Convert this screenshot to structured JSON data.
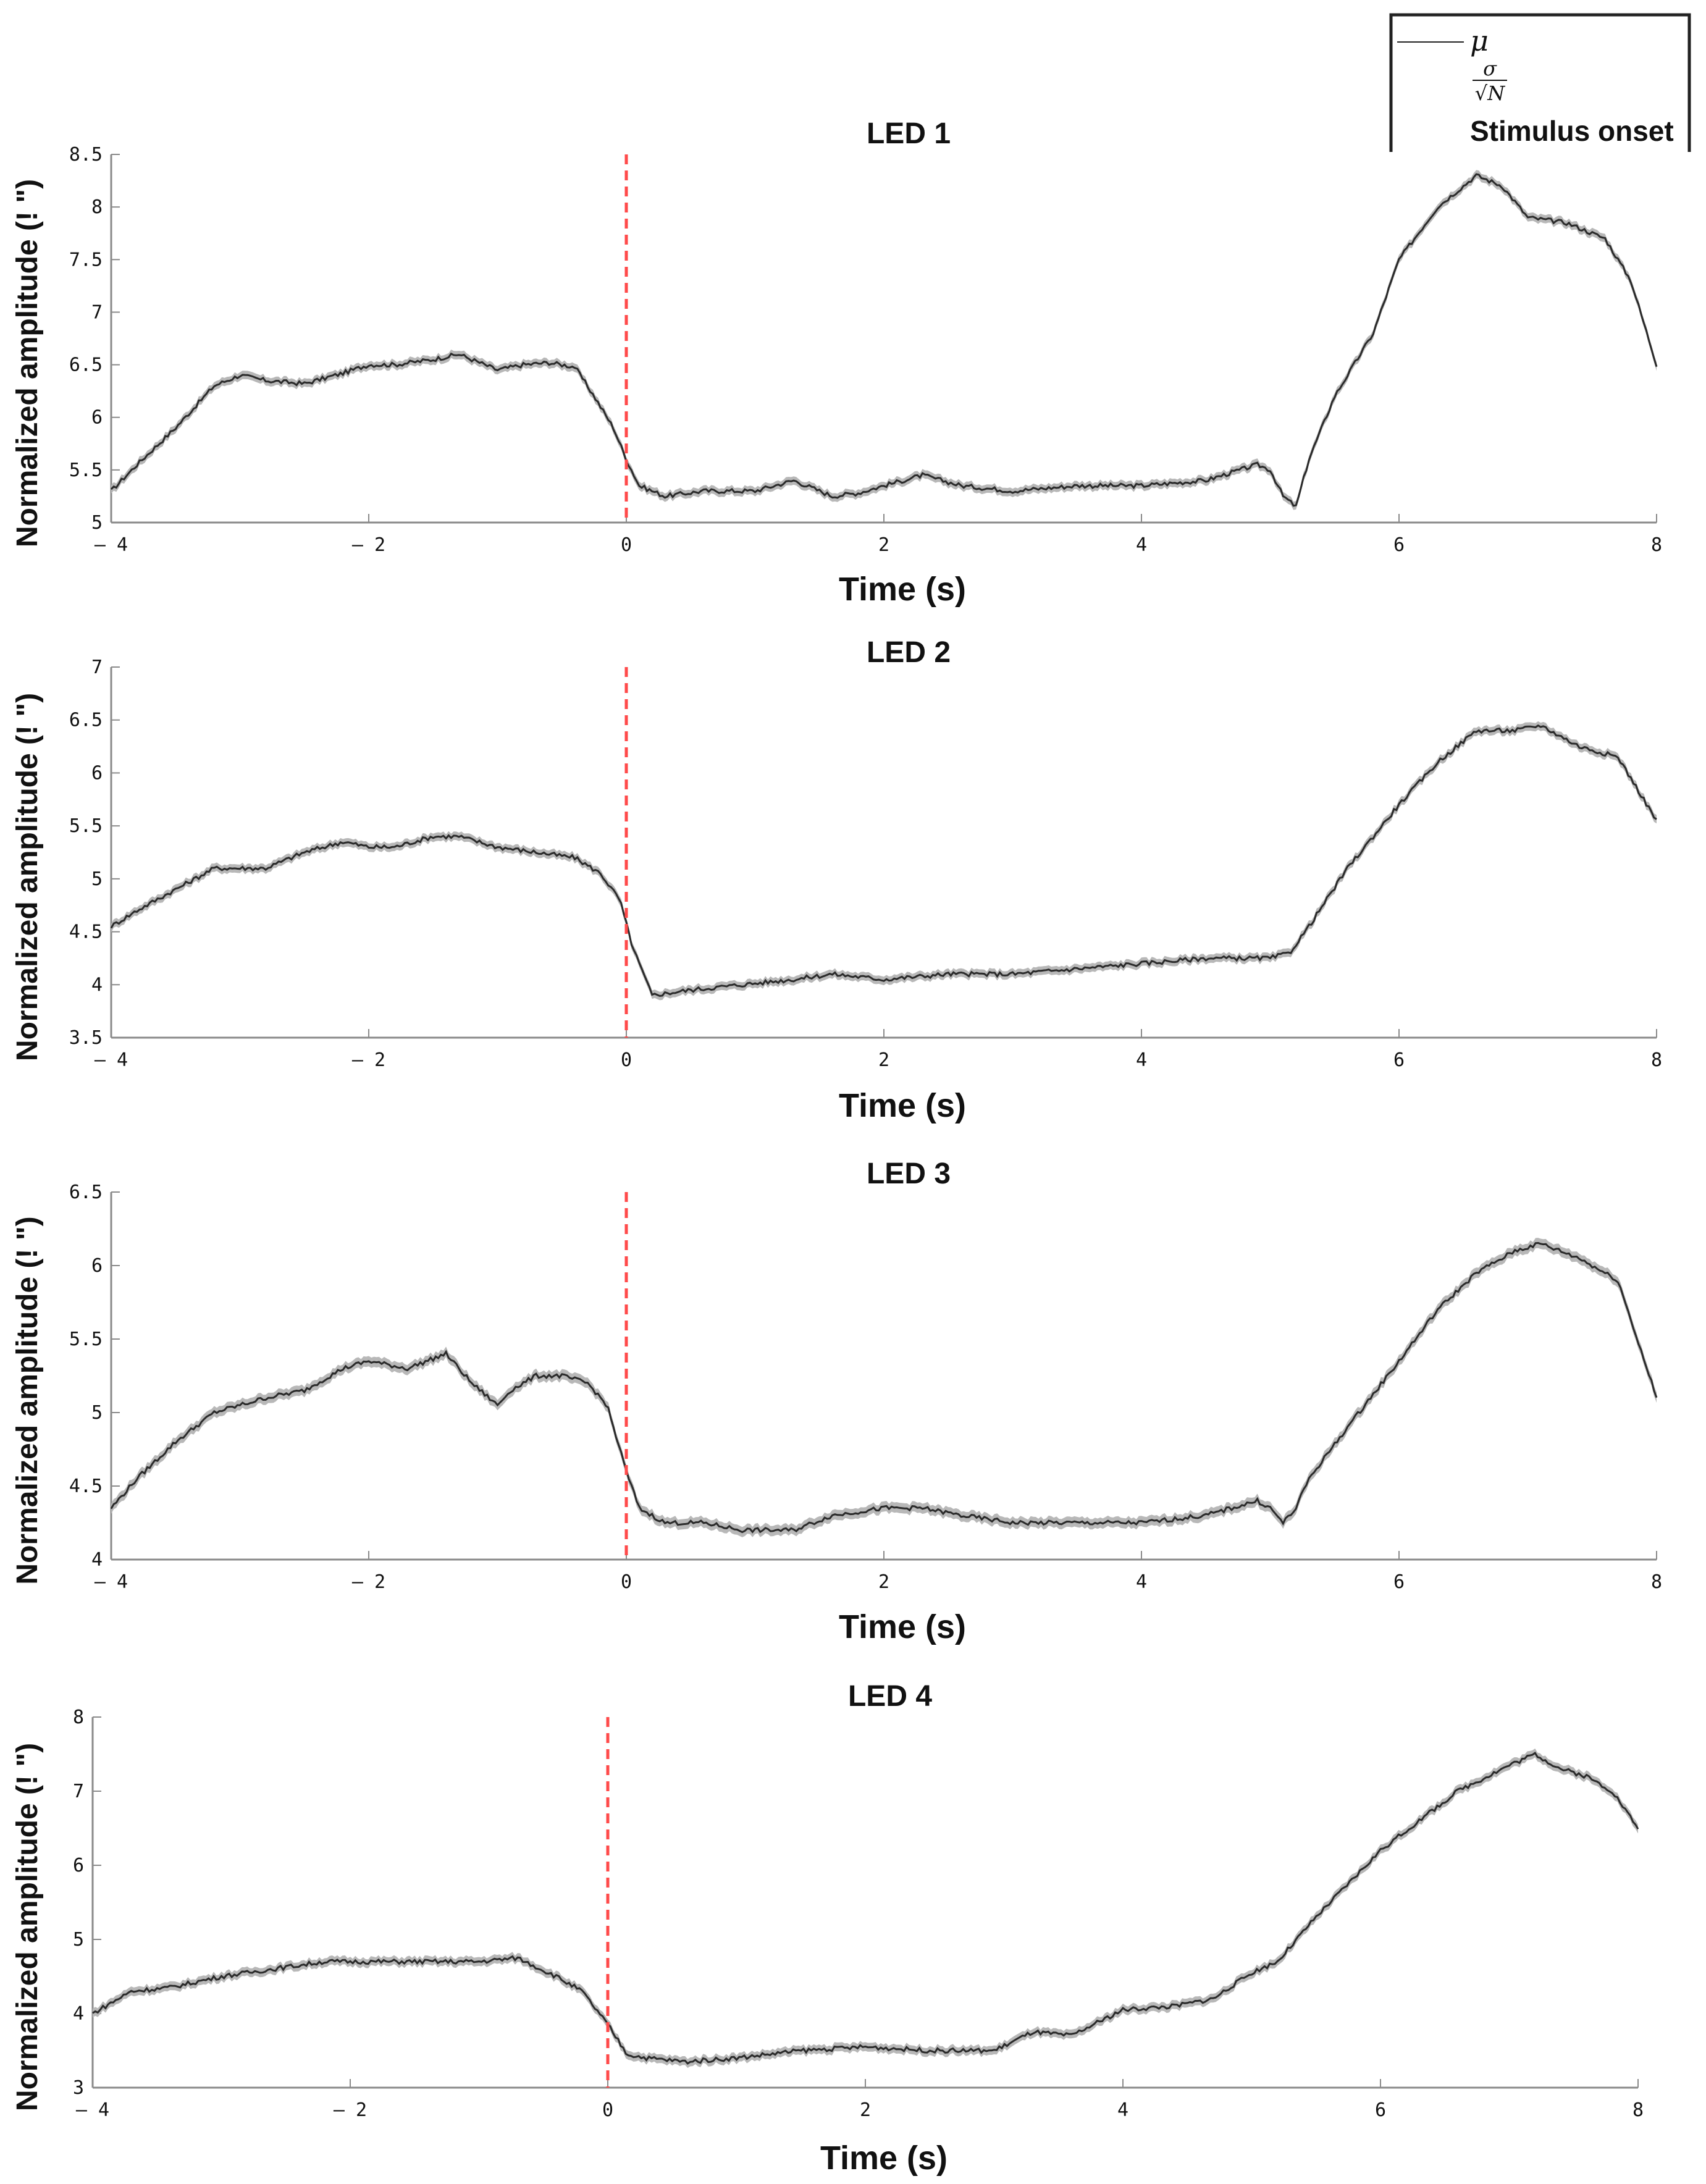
{
  "legend": {
    "mean_label": "μ",
    "sem_numerator": "σ",
    "sem_denominator": "√N",
    "onset_label": "Stimulus onset"
  },
  "colors": {
    "mean_line": "#2a2a2a",
    "sem_band": "#b8b8b8",
    "onset_line": "#ff4a4a",
    "axis": "#8a8a8a"
  },
  "chart_data": [
    {
      "type": "line",
      "title": "LED 1",
      "xlabel": "Time (s)",
      "ylabel": "Normalized amplitude (!  \")",
      "xlim": [
        -4,
        8
      ],
      "ylim": [
        5,
        8.5
      ],
      "xticks": [
        -4,
        -2,
        0,
        2,
        4,
        6,
        8
      ],
      "xtick_labels": [
        "– 4",
        "– 2",
        "0",
        "2",
        "4",
        "6",
        "8"
      ],
      "yticks": [
        5,
        5.5,
        6,
        6.5,
        7,
        7.5,
        8,
        8.5
      ],
      "ytick_labels": [
        "5",
        "5.5",
        "6",
        "6.5",
        "7",
        "7.5",
        "8",
        "8.5"
      ],
      "onset_x": 0,
      "sem": 0.04,
      "series": [
        {
          "name": "μ",
          "x": [
            -4,
            -3.8,
            -3.5,
            -3.2,
            -3.0,
            -2.8,
            -2.5,
            -2.2,
            -2.0,
            -1.8,
            -1.5,
            -1.3,
            -1.0,
            -0.8,
            -0.6,
            -0.4,
            -0.25,
            -0.1,
            0.0,
            0.1,
            0.3,
            0.6,
            1.0,
            1.3,
            1.6,
            1.8,
            2.0,
            2.3,
            2.6,
            3.0,
            3.5,
            4.0,
            4.5,
            4.9,
            5.0,
            5.1,
            5.2,
            5.3,
            5.5,
            5.8,
            6.0,
            6.3,
            6.6,
            6.8,
            7.0,
            7.3,
            7.6,
            7.8,
            8.0
          ],
          "values": [
            5.3,
            5.55,
            5.9,
            6.3,
            6.4,
            6.35,
            6.32,
            6.42,
            6.5,
            6.5,
            6.55,
            6.6,
            6.45,
            6.5,
            6.52,
            6.48,
            6.2,
            5.9,
            5.6,
            5.35,
            5.25,
            5.3,
            5.3,
            5.4,
            5.25,
            5.28,
            5.35,
            5.45,
            5.35,
            5.3,
            5.35,
            5.35,
            5.4,
            5.55,
            5.5,
            5.25,
            5.15,
            5.6,
            6.2,
            6.8,
            7.5,
            8.0,
            8.3,
            8.2,
            7.9,
            7.85,
            7.7,
            7.3,
            6.5
          ]
        }
      ]
    },
    {
      "type": "line",
      "title": "LED 2",
      "xlabel": "Time (s)",
      "ylabel": "Normalized amplitude (!  \")",
      "xlim": [
        -4,
        8
      ],
      "ylim": [
        3.5,
        7
      ],
      "xticks": [
        -4,
        -2,
        0,
        2,
        4,
        6,
        8
      ],
      "xtick_labels": [
        "– 4",
        "– 2",
        "0",
        "2",
        "4",
        "6",
        "8"
      ],
      "yticks": [
        3.5,
        4,
        4.5,
        5,
        5.5,
        6,
        6.5,
        7
      ],
      "ytick_labels": [
        "3.5",
        "4",
        "4.5",
        "5",
        "5.5",
        "6",
        "6.5",
        "7"
      ],
      "onset_x": 0,
      "sem": 0.04,
      "series": [
        {
          "name": "μ",
          "x": [
            -4,
            -3.8,
            -3.5,
            -3.2,
            -3.0,
            -2.8,
            -2.5,
            -2.2,
            -2.0,
            -1.8,
            -1.5,
            -1.3,
            -1.0,
            -0.7,
            -0.4,
            -0.2,
            -0.05,
            0.05,
            0.2,
            0.5,
            0.9,
            1.3,
            1.6,
            2.0,
            2.5,
            3.0,
            3.5,
            4.0,
            4.5,
            5.0,
            5.15,
            5.3,
            5.6,
            6.0,
            6.3,
            6.6,
            6.9,
            7.1,
            7.4,
            7.7,
            8.0
          ],
          "values": [
            4.55,
            4.7,
            4.9,
            5.1,
            5.1,
            5.1,
            5.25,
            5.35,
            5.3,
            5.3,
            5.4,
            5.4,
            5.3,
            5.25,
            5.2,
            5.05,
            4.8,
            4.35,
            3.9,
            3.95,
            4.0,
            4.05,
            4.1,
            4.05,
            4.1,
            4.1,
            4.15,
            4.2,
            4.25,
            4.25,
            4.3,
            4.55,
            5.1,
            5.7,
            6.1,
            6.4,
            6.4,
            6.45,
            6.25,
            6.15,
            5.55
          ]
        }
      ]
    },
    {
      "type": "line",
      "title": "LED 3",
      "xlabel": "Time (s)",
      "ylabel": "Normalized amplitude (!  \")",
      "xlim": [
        -4,
        8
      ],
      "ylim": [
        4,
        6.5
      ],
      "xticks": [
        -4,
        -2,
        0,
        2,
        4,
        6,
        8
      ],
      "xtick_labels": [
        "– 4",
        "– 2",
        "0",
        "2",
        "4",
        "6",
        "8"
      ],
      "yticks": [
        4,
        4.5,
        5,
        5.5,
        6,
        6.5
      ],
      "ytick_labels": [
        "4",
        "4.5",
        "5",
        "5.5",
        "6",
        "6.5"
      ],
      "onset_x": 0,
      "sem": 0.035,
      "series": [
        {
          "name": "μ",
          "x": [
            -4,
            -3.8,
            -3.5,
            -3.2,
            -3.0,
            -2.8,
            -2.5,
            -2.2,
            -2.0,
            -1.7,
            -1.4,
            -1.2,
            -1.0,
            -0.9,
            -0.7,
            -0.5,
            -0.3,
            -0.15,
            0.0,
            0.1,
            0.3,
            0.6,
            0.9,
            1.3,
            1.6,
            2.0,
            2.3,
            2.6,
            3.0,
            3.5,
            4.0,
            4.5,
            4.9,
            5.0,
            5.1,
            5.2,
            5.3,
            5.6,
            6.0,
            6.3,
            6.6,
            6.9,
            7.1,
            7.4,
            7.7,
            8.0
          ],
          "values": [
            4.35,
            4.55,
            4.8,
            5.0,
            5.05,
            5.1,
            5.15,
            5.3,
            5.35,
            5.3,
            5.4,
            5.2,
            5.05,
            5.15,
            5.25,
            5.25,
            5.2,
            5.05,
            4.6,
            4.35,
            4.25,
            4.25,
            4.2,
            4.2,
            4.3,
            4.35,
            4.35,
            4.3,
            4.25,
            4.25,
            4.25,
            4.3,
            4.4,
            4.35,
            4.25,
            4.35,
            4.55,
            4.9,
            5.35,
            5.7,
            5.95,
            6.1,
            6.15,
            6.05,
            5.9,
            5.1
          ]
        }
      ]
    },
    {
      "type": "line",
      "title": "LED 4",
      "xlabel": "Time (s)",
      "ylabel": "Normalized amplitude (!  \")",
      "xlim": [
        -4,
        8
      ],
      "ylim": [
        3,
        8
      ],
      "xticks": [
        -4,
        -2,
        0,
        2,
        4,
        6,
        8
      ],
      "xtick_labels": [
        "– 4",
        "– 2",
        "0",
        "2",
        "4",
        "6",
        "8"
      ],
      "yticks": [
        3,
        4,
        5,
        6,
        7,
        8
      ],
      "ytick_labels": [
        "3",
        "4",
        "5",
        "6",
        "7",
        "8"
      ],
      "onset_x": 0,
      "sem": 0.06,
      "series": [
        {
          "name": "μ",
          "x": [
            -4,
            -3.7,
            -3.4,
            -3.0,
            -2.6,
            -2.2,
            -1.8,
            -1.4,
            -1.0,
            -0.7,
            -0.4,
            -0.2,
            0.0,
            0.15,
            0.3,
            0.6,
            1.0,
            1.5,
            2.0,
            2.5,
            3.0,
            3.3,
            3.6,
            4.0,
            4.4,
            4.7,
            5.0,
            5.2,
            5.5,
            6.0,
            6.3,
            6.6,
            7.0,
            7.2,
            7.4,
            7.6,
            7.8,
            8.0
          ],
          "values": [
            4.0,
            4.3,
            4.35,
            4.5,
            4.6,
            4.7,
            4.7,
            4.7,
            4.7,
            4.75,
            4.5,
            4.3,
            3.85,
            3.45,
            3.4,
            3.35,
            3.4,
            3.5,
            3.55,
            3.5,
            3.5,
            3.75,
            3.7,
            4.05,
            4.1,
            4.2,
            4.55,
            4.7,
            5.3,
            6.2,
            6.6,
            7.0,
            7.35,
            7.5,
            7.3,
            7.2,
            7.0,
            6.5
          ]
        }
      ]
    }
  ]
}
